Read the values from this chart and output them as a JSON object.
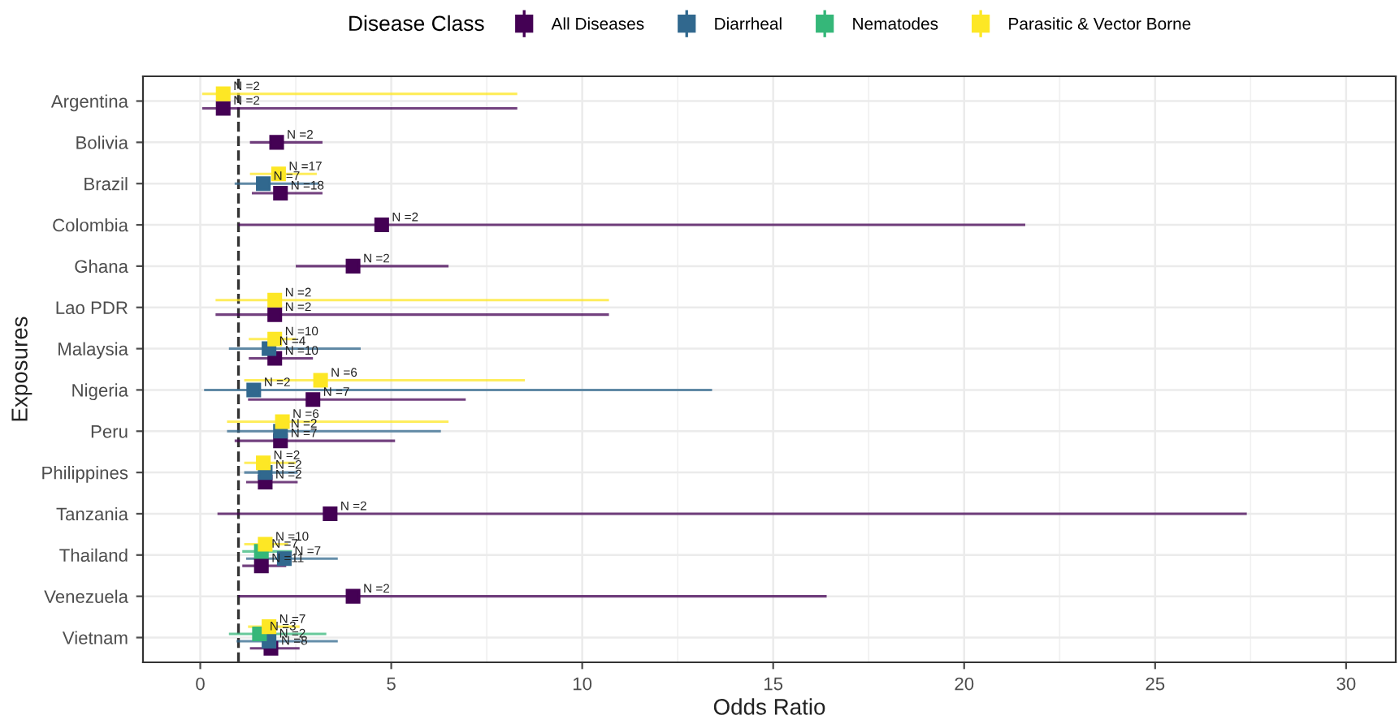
{
  "chart_data": {
    "type": "scatter",
    "orientation": "horizontal",
    "xlabel": "Odds Ratio",
    "ylabel": "Exposures",
    "legend_title": "Disease Class",
    "legend": "top",
    "categories": [
      "Argentina",
      "Bolivia",
      "Brazil",
      "Colombia",
      "Ghana",
      "Lao PDR",
      "Malaysia",
      "Nigeria",
      "Peru",
      "Philippines",
      "Tanzania",
      "Thailand",
      "Venezuela",
      "Vietnam"
    ],
    "xlim": [
      -1.5,
      31.3
    ],
    "xticks": [
      0,
      5,
      10,
      15,
      20,
      25,
      30
    ],
    "grid": true,
    "marker": "square",
    "ref_lines": [
      {
        "axis": "x",
        "value": 1,
        "color": "#333333",
        "line_style": "dashed"
      }
    ],
    "series": [
      {
        "name": "All Diseases",
        "color": "#440154",
        "values": [
          0.6,
          2.0,
          2.1,
          4.75,
          4.0,
          1.95,
          1.95,
          2.95,
          2.1,
          1.7,
          3.4,
          1.6,
          4.0,
          1.85
        ],
        "errors": [
          [
            0.05,
            8.3
          ],
          [
            1.3,
            3.2
          ],
          [
            1.35,
            3.2
          ],
          [
            1.0,
            21.6
          ],
          [
            2.5,
            6.5
          ],
          [
            0.4,
            10.7
          ],
          [
            1.27,
            2.95
          ],
          [
            1.25,
            6.95
          ],
          [
            0.9,
            5.1
          ],
          [
            1.2,
            2.55
          ],
          [
            0.45,
            27.4
          ],
          [
            1.1,
            2.25
          ],
          [
            1.0,
            16.4
          ],
          [
            1.3,
            2.6
          ]
        ]
      },
      {
        "name": "Diarrheal",
        "color": "#31688e",
        "values": [
          null,
          null,
          1.65,
          null,
          null,
          null,
          1.8,
          1.4,
          2.1,
          1.7,
          null,
          2.2,
          null,
          1.8
        ],
        "errors": [
          null,
          null,
          [
            0.9,
            3.1
          ],
          null,
          null,
          null,
          [
            0.75,
            4.2
          ],
          [
            0.1,
            13.4
          ],
          [
            0.7,
            6.3
          ],
          [
            1.15,
            2.55
          ],
          null,
          [
            1.2,
            3.6
          ],
          null,
          [
            0.95,
            3.6
          ]
        ]
      },
      {
        "name": "Nematodes",
        "color": "#35b779",
        "values": [
          null,
          null,
          null,
          null,
          null,
          null,
          null,
          null,
          null,
          null,
          null,
          1.6,
          null,
          1.55
        ],
        "errors": [
          null,
          null,
          null,
          null,
          null,
          null,
          null,
          null,
          null,
          null,
          null,
          [
            1.1,
            2.4
          ],
          null,
          [
            0.75,
            3.3
          ]
        ]
      },
      {
        "name": "Parasitic & Vector Borne",
        "color": "#fde725",
        "values": [
          0.6,
          null,
          2.05,
          null,
          null,
          1.95,
          1.95,
          3.15,
          2.15,
          1.65,
          null,
          1.7,
          null,
          1.8
        ],
        "errors": [
          [
            0.05,
            8.3
          ],
          null,
          [
            1.3,
            3.05
          ],
          null,
          null,
          [
            0.4,
            10.7
          ],
          [
            1.27,
            2.5
          ],
          [
            1.15,
            8.5
          ],
          [
            0.7,
            6.5
          ],
          [
            1.15,
            2.5
          ],
          null,
          [
            1.15,
            2.3
          ],
          null,
          [
            1.25,
            2.6
          ]
        ]
      }
    ],
    "annotations": [
      {
        "text": "N =2",
        "x": 0.6,
        "y": "Argentina"
      },
      {
        "text": "N =2",
        "x": 0.6,
        "y": "Argentina"
      },
      {
        "text": "N =2",
        "x": 2.0,
        "y": "Bolivia"
      },
      {
        "text": "N =18",
        "x": 2.1,
        "y": "Brazil"
      },
      {
        "text": "N =7",
        "x": 1.65,
        "y": "Brazil"
      },
      {
        "text": "N =17",
        "x": 2.05,
        "y": "Brazil"
      },
      {
        "text": "N =2",
        "x": 4.75,
        "y": "Colombia"
      },
      {
        "text": "N =2",
        "x": 4.0,
        "y": "Ghana"
      },
      {
        "text": "N =2",
        "x": 1.95,
        "y": "Lao PDR"
      },
      {
        "text": "N =2",
        "x": 1.95,
        "y": "Lao PDR"
      },
      {
        "text": "N =10",
        "x": 1.95,
        "y": "Malaysia"
      },
      {
        "text": "N =4",
        "x": 1.8,
        "y": "Malaysia"
      },
      {
        "text": "N =10",
        "x": 1.95,
        "y": "Malaysia"
      },
      {
        "text": "N =7",
        "x": 2.95,
        "y": "Nigeria"
      },
      {
        "text": "N =2",
        "x": 1.4,
        "y": "Nigeria"
      },
      {
        "text": "N =6",
        "x": 3.15,
        "y": "Nigeria"
      },
      {
        "text": "N =7",
        "x": 2.1,
        "y": "Peru"
      },
      {
        "text": "N =2",
        "x": 2.1,
        "y": "Peru"
      },
      {
        "text": "N =6",
        "x": 2.15,
        "y": "Peru"
      },
      {
        "text": "N =2",
        "x": 1.7,
        "y": "Philippines"
      },
      {
        "text": "N =2",
        "x": 1.7,
        "y": "Philippines"
      },
      {
        "text": "N =2",
        "x": 1.65,
        "y": "Philippines"
      },
      {
        "text": "N =2",
        "x": 3.4,
        "y": "Tanzania"
      },
      {
        "text": "N =11",
        "x": 1.6,
        "y": "Thailand"
      },
      {
        "text": "N =7",
        "x": 2.2,
        "y": "Thailand"
      },
      {
        "text": "N =7",
        "x": 1.6,
        "y": "Thailand"
      },
      {
        "text": "N =10",
        "x": 1.7,
        "y": "Thailand"
      },
      {
        "text": "N =2",
        "x": 4.0,
        "y": "Venezuela"
      },
      {
        "text": "N =8",
        "x": 1.85,
        "y": "Vietnam"
      },
      {
        "text": "N =2",
        "x": 1.8,
        "y": "Vietnam"
      },
      {
        "text": "N =3",
        "x": 1.55,
        "y": "Vietnam"
      },
      {
        "text": "N =7",
        "x": 1.8,
        "y": "Vietnam"
      }
    ]
  }
}
